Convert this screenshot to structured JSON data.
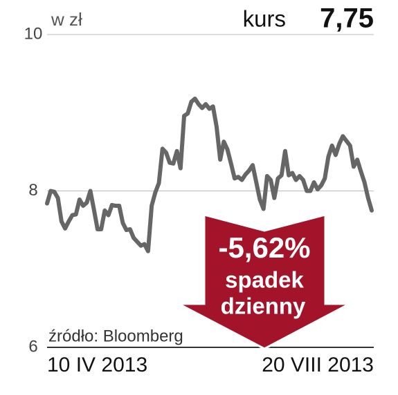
{
  "chart_data": {
    "type": "line",
    "unit_label": "w zł",
    "price_label": "kurs",
    "price_value_label": "7,75",
    "annotation": {
      "change": "-5,62%",
      "line1": "spadek",
      "line2": "dzienny"
    },
    "source": "źródło: Bloomberg",
    "categories": [
      "10 IV 2013",
      null,
      null,
      null,
      null,
      null,
      null,
      null,
      null,
      null,
      null,
      null,
      null,
      null,
      null,
      null,
      null,
      null,
      null,
      null,
      null,
      null,
      null,
      null,
      null,
      null,
      null,
      null,
      null,
      null,
      null,
      null,
      null,
      null,
      null,
      null,
      null,
      null,
      null,
      null,
      null,
      null,
      null,
      null,
      null,
      null,
      null,
      null,
      null,
      null,
      null,
      null,
      null,
      null,
      null,
      null,
      null,
      null,
      null,
      null,
      null,
      null,
      null,
      null,
      null,
      null,
      null,
      null,
      null,
      null,
      null,
      null,
      null,
      null,
      null,
      null,
      null,
      null,
      null,
      null,
      null,
      null,
      null,
      null,
      null,
      null,
      null,
      null,
      null,
      null,
      "20 VIII 2013"
    ],
    "values": [
      7.84,
      8.0,
      7.99,
      7.91,
      7.61,
      7.52,
      7.61,
      7.69,
      7.7,
      7.89,
      7.81,
      7.85,
      8.0,
      7.76,
      7.51,
      7.51,
      7.75,
      7.69,
      7.82,
      7.81,
      7.81,
      7.59,
      7.5,
      7.51,
      7.4,
      7.35,
      7.3,
      7.32,
      7.23,
      7.81,
      7.98,
      8.1,
      8.54,
      8.49,
      8.36,
      8.35,
      8.51,
      8.29,
      8.96,
      8.99,
      9.14,
      9.18,
      9.11,
      9.06,
      9.11,
      9.05,
      9.08,
      8.82,
      8.4,
      8.63,
      8.53,
      8.35,
      8.16,
      8.18,
      8.14,
      8.21,
      8.26,
      8.33,
      8.11,
      7.89,
      7.77,
      8.19,
      8.14,
      7.91,
      8.16,
      8.2,
      8.51,
      8.2,
      8.23,
      8.14,
      8.19,
      8.14,
      8.0,
      8.0,
      8.11,
      8.02,
      8.07,
      8.16,
      8.44,
      8.58,
      8.46,
      8.6,
      8.7,
      8.64,
      8.58,
      8.31,
      8.4,
      8.25,
      8.11,
      7.91,
      7.75
    ],
    "color": "#666666",
    "ylim": [
      6,
      10
    ],
    "yticks": [
      6,
      8,
      10
    ],
    "grid": true
  }
}
